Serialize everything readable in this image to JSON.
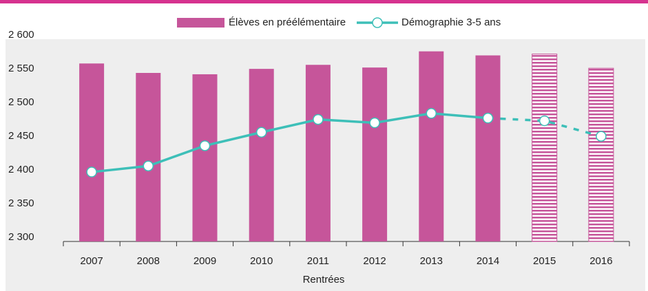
{
  "chart_data": {
    "type": "bar_line",
    "x_label": "Rentrées",
    "categories": [
      "2007",
      "2008",
      "2009",
      "2010",
      "2011",
      "2012",
      "2013",
      "2014",
      "2015",
      "2016"
    ],
    "forecast_start": 8,
    "series": [
      {
        "name": "Élèves en préélémentaire",
        "kind": "bar",
        "color": "#c6559a",
        "values": [
          2564,
          2550,
          2548,
          2556,
          2562,
          2558,
          2582,
          2576,
          2578,
          2557
        ]
      },
      {
        "name": "Démographie 3-5 ans",
        "kind": "line",
        "color": "#3dbfb8",
        "values": [
          2403,
          2412,
          2442,
          2462,
          2481,
          2476,
          2490,
          2483,
          2479,
          2456
        ]
      }
    ],
    "ylim": [
      2300,
      2600
    ],
    "yticks": [
      {
        "value": 2300,
        "label": "2 300"
      },
      {
        "value": 2350,
        "label": "2 350"
      },
      {
        "value": 2400,
        "label": "2 400"
      },
      {
        "value": 2450,
        "label": "2 450"
      },
      {
        "value": 2500,
        "label": "2 500"
      },
      {
        "value": 2550,
        "label": "2 550"
      },
      {
        "value": 2600,
        "label": "2 600"
      }
    ]
  }
}
